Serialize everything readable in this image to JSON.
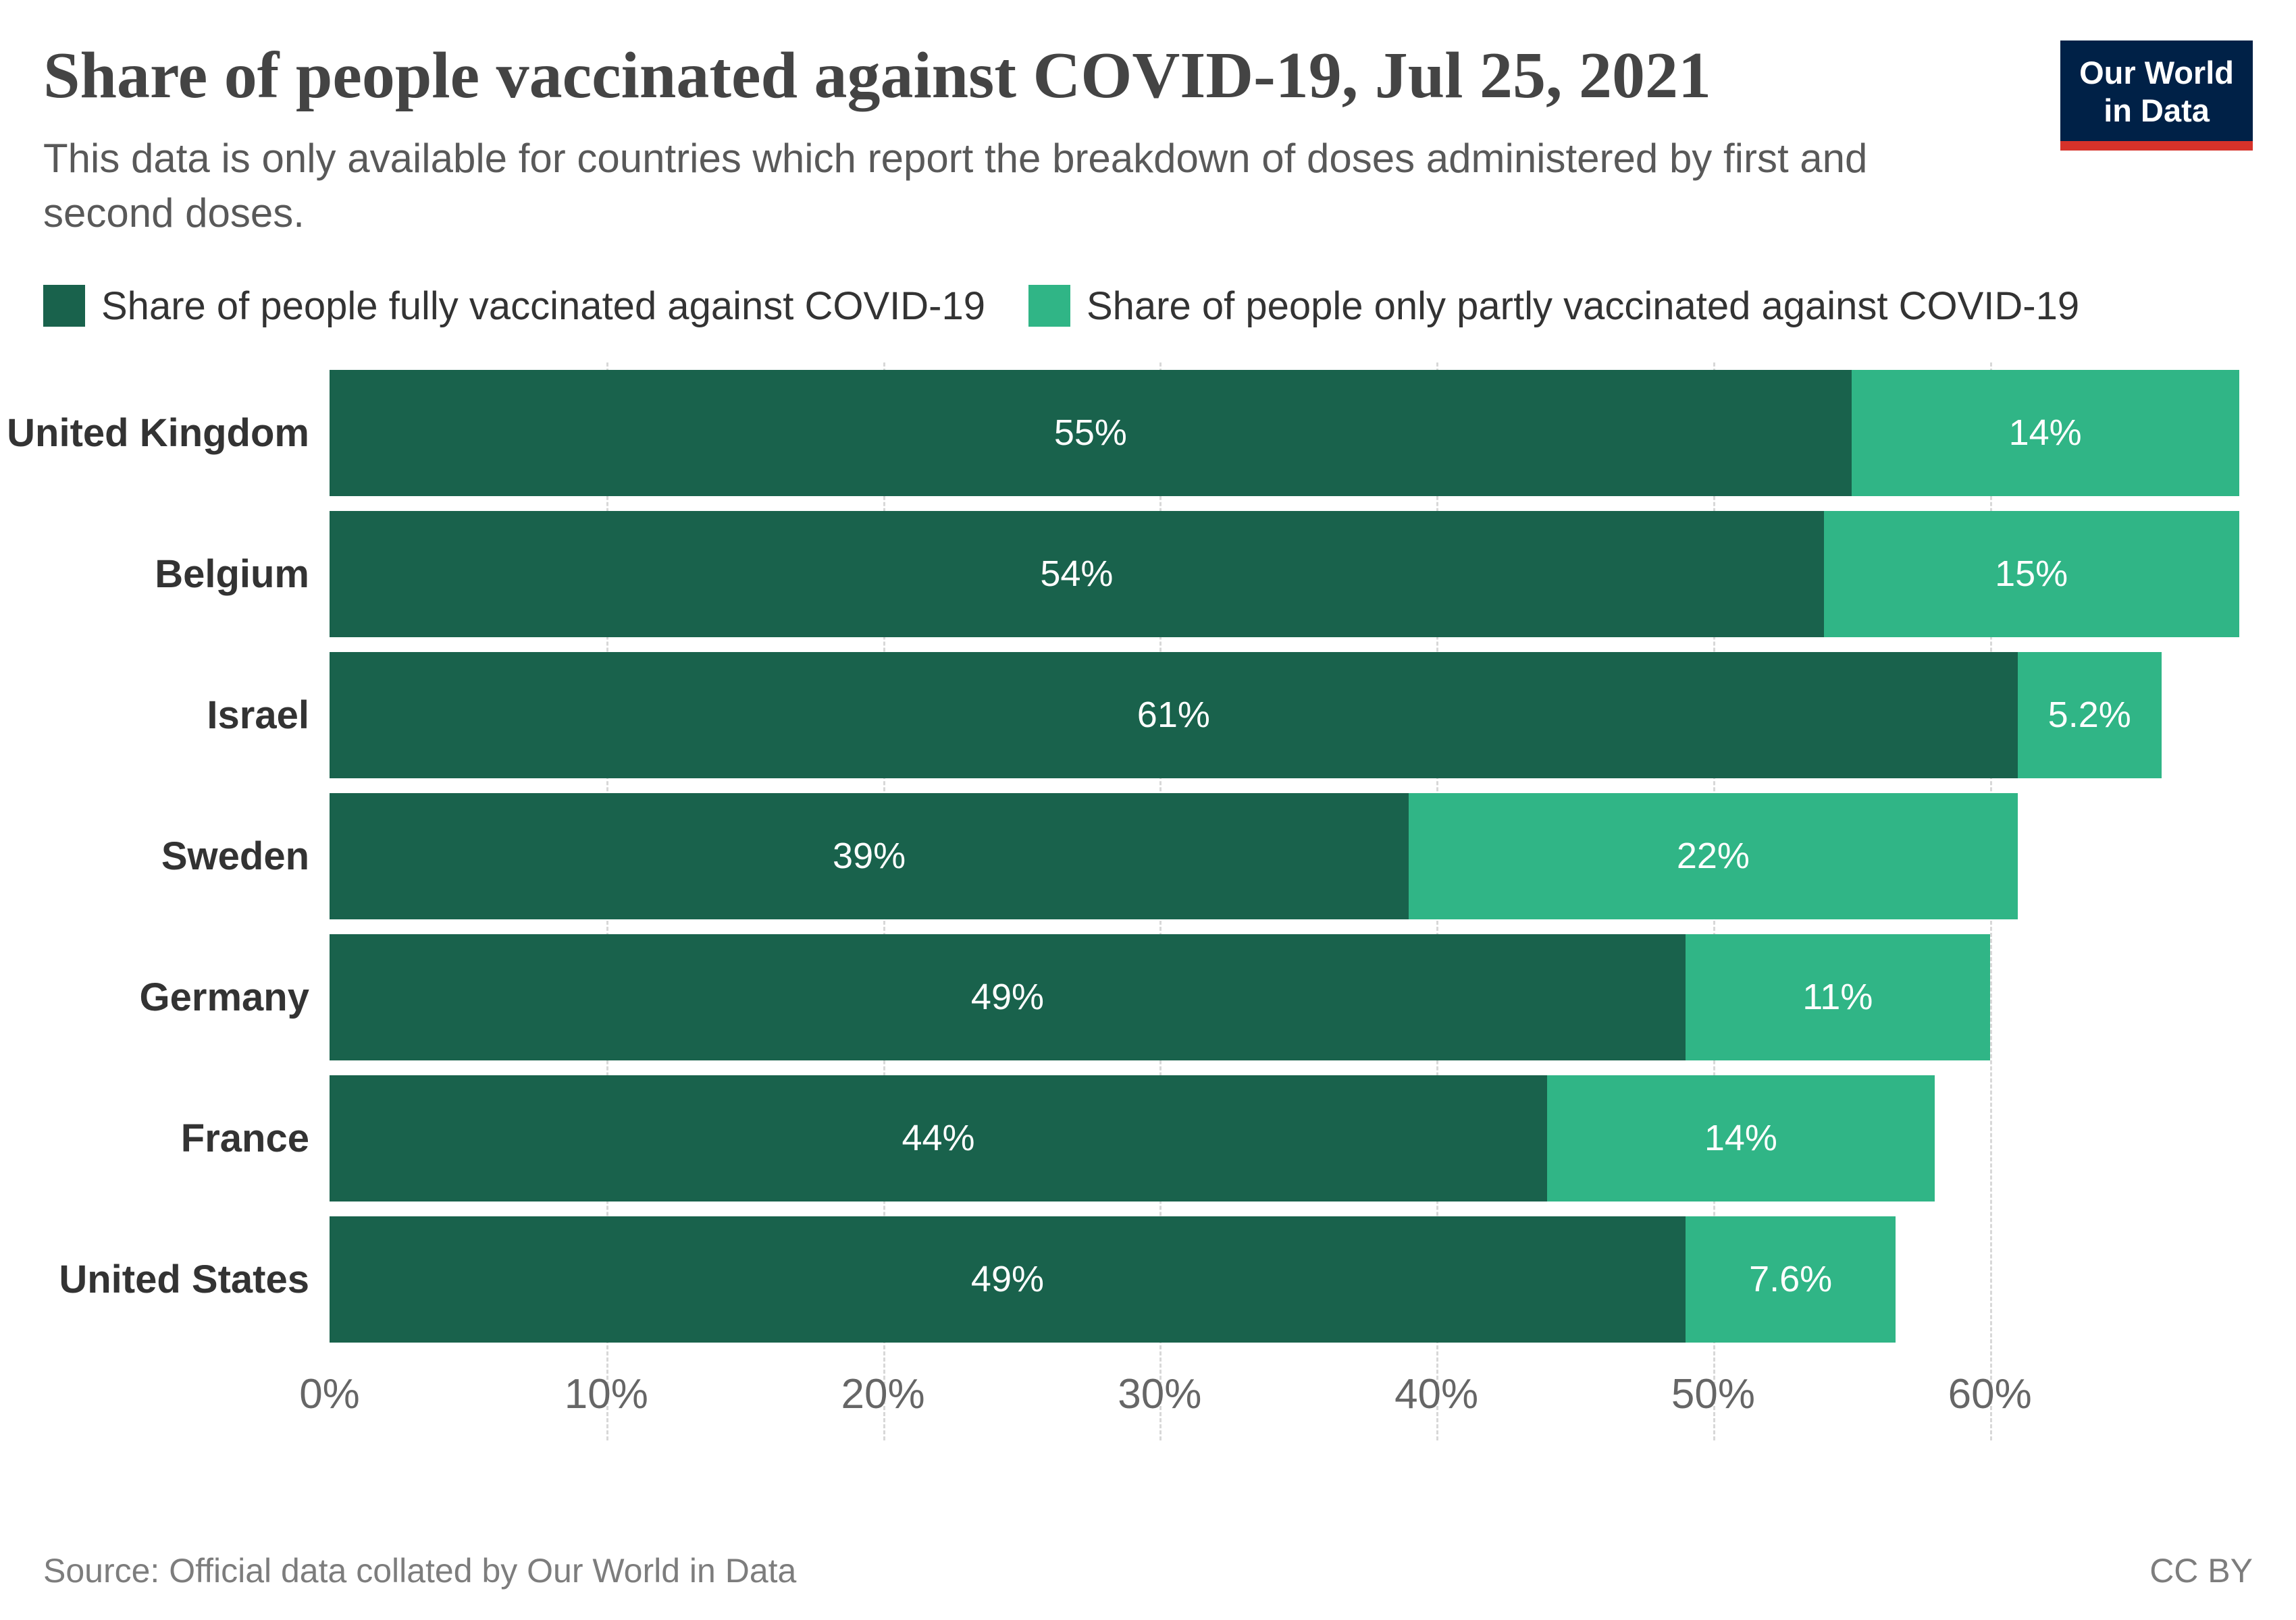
{
  "header": {
    "title": "Share of people vaccinated against COVID-19, Jul 25, 2021",
    "subtitle": "This data is only available for countries which report the breakdown of doses administered by first and second doses.",
    "logo": {
      "line1": "Our World",
      "line2": "in Data",
      "bg_color": "#002147",
      "accent_color": "#d6322a"
    }
  },
  "legend": [
    {
      "label": "Share of people fully vaccinated against COVID-19",
      "color": "#19624c"
    },
    {
      "label": "Share of people only partly vaccinated against COVID-19",
      "color": "#30b586"
    }
  ],
  "chart_data": {
    "type": "bar",
    "orientation": "horizontal",
    "stacked": true,
    "title": "Share of people vaccinated against COVID-19, Jul 25, 2021",
    "categories": [
      "United Kingdom",
      "Belgium",
      "Israel",
      "Sweden",
      "Germany",
      "France",
      "United States"
    ],
    "series": [
      {
        "name": "Share of people fully vaccinated against COVID-19",
        "color": "#19624c",
        "values": [
          55,
          54,
          61,
          39,
          49,
          44,
          49
        ],
        "labels": [
          "55%",
          "54%",
          "61%",
          "39%",
          "49%",
          "44%",
          "49%"
        ]
      },
      {
        "name": "Share of people only partly vaccinated against COVID-19",
        "color": "#30b586",
        "values": [
          14,
          15,
          5.2,
          22,
          11,
          14,
          7.6
        ],
        "labels": [
          "14%",
          "15%",
          "5.2%",
          "22%",
          "11%",
          "14%",
          "7.6%"
        ]
      }
    ],
    "xlabel": "",
    "ylabel": "",
    "xlim": [
      0,
      69.5
    ],
    "x_ticks": [
      0,
      10,
      20,
      30,
      40,
      50,
      60
    ],
    "x_tick_labels": [
      "0%",
      "10%",
      "20%",
      "30%",
      "40%",
      "50%",
      "60%"
    ],
    "grid": "vertical dashed",
    "legend_position": "top",
    "value_labels": "inside white centered"
  },
  "footer": {
    "source": "Source: Official data collated by Our World in Data",
    "license": "CC BY"
  }
}
